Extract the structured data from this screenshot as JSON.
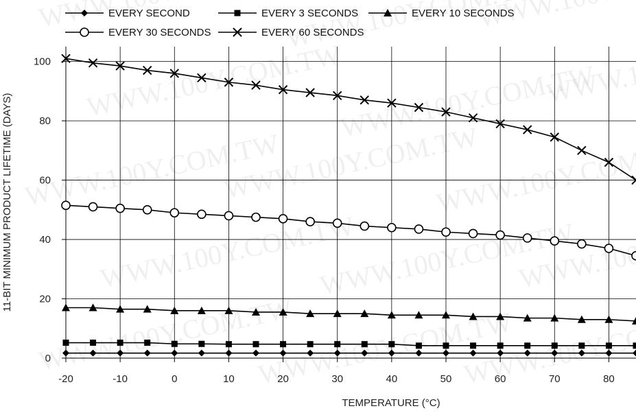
{
  "watermark": "WWW.100Y.COM.TW",
  "chart_data": {
    "type": "line",
    "xlabel": "TEMPERATURE (°C)",
    "ylabel": "11-BIT MINIMUM PRODUCT LIFETIME (DAYS)",
    "xlim": [
      -20,
      85
    ],
    "ylim": [
      0,
      105
    ],
    "xticks": [
      -20,
      -10,
      0,
      10,
      20,
      30,
      40,
      50,
      60,
      70,
      80
    ],
    "yticks": [
      0,
      20,
      40,
      60,
      80,
      100
    ],
    "grid": true,
    "legend_position": "top",
    "x": [
      -20,
      -15,
      -10,
      -5,
      0,
      5,
      10,
      15,
      20,
      25,
      30,
      35,
      40,
      45,
      50,
      55,
      60,
      65,
      70,
      75,
      80,
      85
    ],
    "series": [
      {
        "name": "EVERY SECOND",
        "marker": "diamond",
        "values": [
          1.7,
          1.7,
          1.7,
          1.7,
          1.7,
          1.7,
          1.7,
          1.7,
          1.7,
          1.7,
          1.7,
          1.7,
          1.7,
          1.7,
          1.7,
          1.7,
          1.7,
          1.7,
          1.7,
          1.7,
          1.7,
          1.7
        ]
      },
      {
        "name": "EVERY 3 SECONDS",
        "marker": "square",
        "values": [
          5.2,
          5.2,
          5.2,
          5.2,
          4.8,
          4.8,
          4.7,
          4.7,
          4.7,
          4.7,
          4.7,
          4.7,
          4.7,
          4.2,
          4.2,
          4.2,
          4.2,
          4.2,
          4.2,
          4.2,
          4.2,
          4.2
        ]
      },
      {
        "name": "EVERY 10 SECONDS",
        "marker": "triangle",
        "values": [
          17.0,
          17.0,
          16.5,
          16.5,
          16.0,
          16.0,
          16.0,
          15.5,
          15.5,
          15.0,
          15.0,
          15.0,
          14.5,
          14.5,
          14.5,
          14.0,
          14.0,
          13.5,
          13.5,
          13.0,
          13.0,
          12.5
        ]
      },
      {
        "name": "EVERY 30 SECONDS",
        "marker": "circle",
        "values": [
          51.5,
          51.0,
          50.5,
          50.0,
          49.0,
          48.5,
          48.0,
          47.5,
          47.0,
          46.0,
          45.5,
          44.5,
          44.0,
          43.5,
          42.5,
          42.0,
          41.5,
          40.5,
          39.5,
          38.5,
          37.0,
          34.5
        ]
      },
      {
        "name": "EVERY 60 SECONDS",
        "marker": "x",
        "values": [
          101.0,
          99.5,
          98.5,
          97.0,
          96.0,
          94.5,
          93.0,
          92.0,
          90.5,
          89.5,
          88.5,
          87.0,
          86.0,
          84.5,
          83.0,
          81.0,
          79.0,
          77.0,
          74.5,
          70.0,
          66.0,
          60.0
        ]
      }
    ]
  }
}
